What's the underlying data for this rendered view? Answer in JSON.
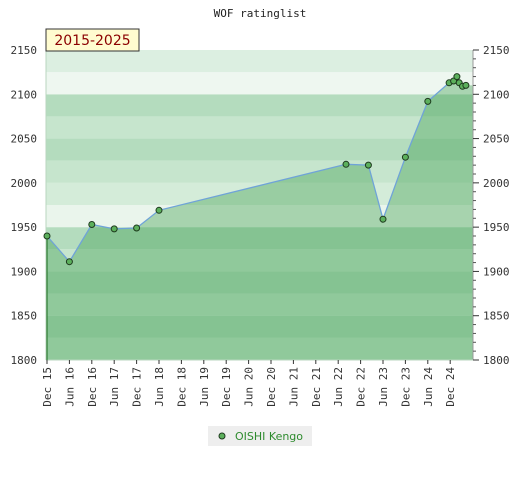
{
  "chart_data": {
    "type": "area",
    "title": "WOF ratinglist",
    "period_label": "2015-2025",
    "ylim": [
      1800,
      2150
    ],
    "y_ticks": [
      1800,
      1850,
      1900,
      1950,
      2000,
      2050,
      2100,
      2150
    ],
    "x_tick_labels": [
      "Dec 15",
      "Jun 16",
      "Dec 16",
      "Jun 17",
      "Dec 17",
      "Jun 18",
      "Dec 18",
      "Jun 19",
      "Dec 19",
      "Jun 20",
      "Dec 20",
      "Jun 21",
      "Dec 21",
      "Jun 22",
      "Dec 22",
      "Jun 23",
      "Dec 23",
      "Jun 24",
      "Dec 24"
    ],
    "series": [
      {
        "name": "OISHI Kengo",
        "x": [
          0,
          1,
          2,
          3,
          4,
          5,
          13.35,
          14.35,
          15,
          16,
          17,
          17.95,
          18.15,
          18.3,
          18.4,
          18.55,
          18.7
        ],
        "values": [
          1940,
          1911,
          1953,
          1948,
          1949,
          1969,
          2021,
          2020,
          1959,
          2029,
          2092,
          2113,
          2115,
          2120,
          2113,
          2109,
          2110
        ]
      }
    ],
    "grid": true,
    "legend_position": "bottom-center",
    "colors": {
      "line": "#6fa3d8",
      "marker_fill": "#5cb05c",
      "area_fill": "#3a9a4a",
      "band_dark": "#b4dcbe",
      "band_light": "#eef7f0",
      "label_box": "#fffcd0",
      "period_text": "#8b0000"
    }
  }
}
